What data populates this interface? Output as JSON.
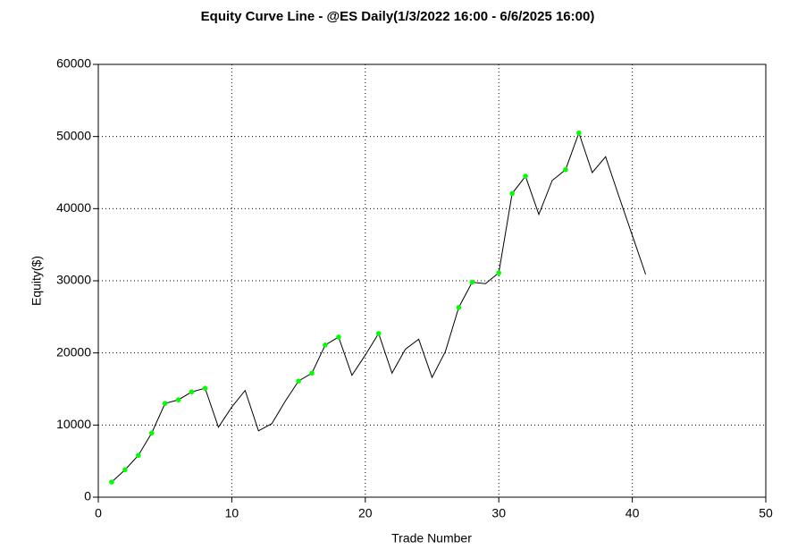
{
  "chart_data": {
    "type": "line",
    "title": "Equity Curve Line - @ES Daily(1/3/2022 16:00 - 6/6/2025 16:00)",
    "xlabel": "Trade Number",
    "ylabel": "Equity($)",
    "x": [
      1,
      2,
      3,
      4,
      5,
      6,
      7,
      8,
      9,
      10,
      11,
      12,
      13,
      14,
      15,
      16,
      17,
      18,
      19,
      20,
      21,
      22,
      23,
      24,
      25,
      26,
      27,
      28,
      29,
      30,
      31,
      32,
      33,
      34,
      35,
      36,
      37,
      38,
      39,
      40,
      41
    ],
    "series": [
      {
        "color": "#000000",
        "marker_color": "#00ff00",
        "values": [
          2100,
          3800,
          5800,
          8900,
          13000,
          13500,
          14600,
          15100,
          9700,
          12500,
          14800,
          9200,
          10200,
          13300,
          16100,
          17200,
          21100,
          22200,
          16900,
          19700,
          22700,
          17200,
          20500,
          21900,
          16600,
          20200,
          26300,
          29800,
          29600,
          31100,
          42100,
          44500,
          39200,
          43900,
          45400,
          50500,
          45000,
          47200,
          41700,
          36300,
          30900
        ]
      }
    ],
    "xlim": [
      0,
      50
    ],
    "xticks": [
      0,
      10,
      20,
      30,
      40,
      50
    ],
    "ylim": [
      0,
      60000
    ],
    "yticks": [
      0,
      10000,
      20000,
      30000,
      40000,
      50000,
      60000
    ],
    "grid": true
  }
}
